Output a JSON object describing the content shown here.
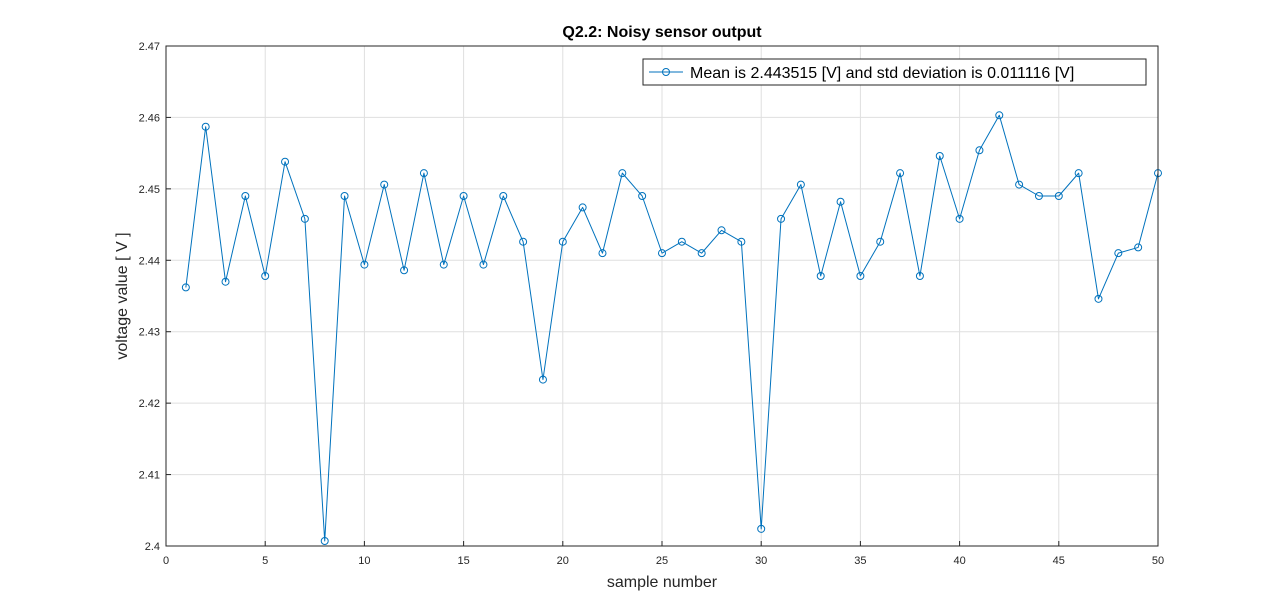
{
  "chart_data": {
    "type": "line",
    "title": "Q2.2: Noisy sensor output",
    "xlabel": "sample number",
    "ylabel": "voltage value [ V ]",
    "xlim": [
      0,
      50
    ],
    "ylim": [
      2.4,
      2.47
    ],
    "xticks": [
      "0",
      "5",
      "10",
      "15",
      "20",
      "25",
      "30",
      "35",
      "40",
      "45",
      "50"
    ],
    "yticks": [
      "2.4",
      "2.41",
      "2.42",
      "2.43",
      "2.44",
      "2.45",
      "2.46",
      "2.47"
    ],
    "grid": true,
    "legend_position": "top-right",
    "marker": "circle",
    "series": [
      {
        "name": "Mean is 2.443515 [V] and std deviation is 0.011116 [V]",
        "color": "#0072BD",
        "x": [
          1,
          2,
          3,
          4,
          5,
          6,
          7,
          8,
          9,
          10,
          11,
          12,
          13,
          14,
          15,
          16,
          17,
          18,
          19,
          20,
          21,
          22,
          23,
          24,
          25,
          26,
          27,
          28,
          29,
          30,
          31,
          32,
          33,
          34,
          35,
          36,
          37,
          38,
          39,
          40,
          41,
          42,
          43,
          44,
          45,
          46,
          47,
          48,
          49,
          50
        ],
        "y": [
          2.4362,
          2.4587,
          2.437,
          2.449,
          2.4378,
          2.4538,
          2.4458,
          2.4007,
          2.449,
          2.4394,
          2.4506,
          2.4386,
          2.4522,
          2.4394,
          2.449,
          2.4394,
          2.449,
          2.4426,
          2.4233,
          2.4426,
          2.4474,
          2.441,
          2.4522,
          2.449,
          2.441,
          2.4426,
          2.441,
          2.4442,
          2.4426,
          2.4024,
          2.4458,
          2.4506,
          2.4378,
          2.4482,
          2.4378,
          2.4426,
          2.4522,
          2.4378,
          2.4546,
          2.4458,
          2.4554,
          2.4603,
          2.4506,
          2.449,
          2.449,
          2.4522,
          2.4346,
          2.441,
          2.4418,
          2.4522
        ]
      }
    ]
  }
}
